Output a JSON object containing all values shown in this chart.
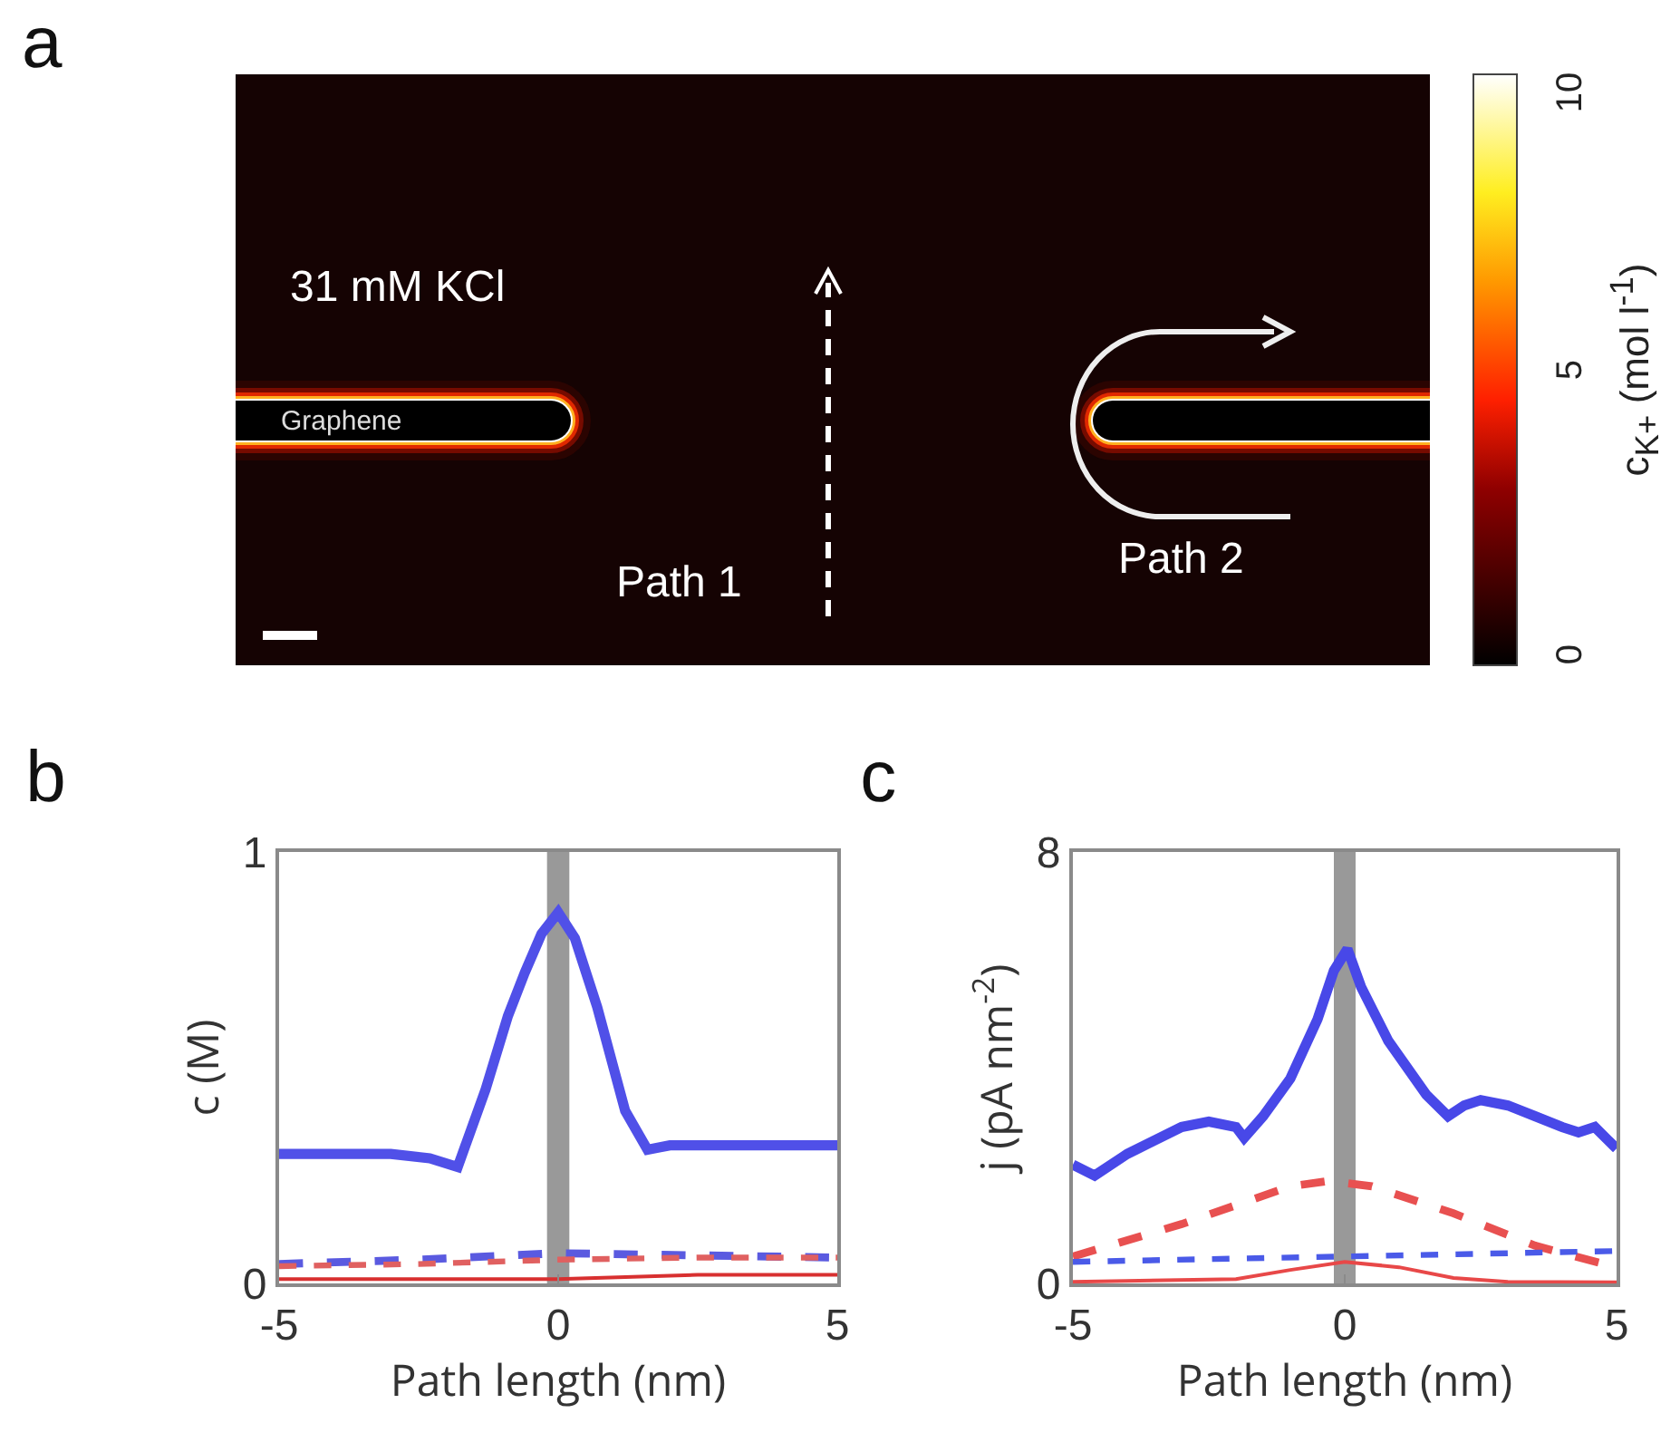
{
  "chart_data": [
    {
      "type": "other",
      "title": "a",
      "annotations": [
        "31 mM KCl",
        "Graphene",
        "Path 1",
        "Path 2",
        "c$_{K+}$ (mol l$^{-1}$)",
        "0",
        "5",
        "10"
      ]
    },
    {
      "type": "line",
      "title": "b",
      "xlabel": "Path length (nm)",
      "ylabel": "c (M)",
      "xlim": [
        -5,
        5
      ],
      "ylim": [
        0,
        1
      ],
      "xticks": [
        -5,
        0,
        5
      ],
      "yticks": [
        0,
        1
      ],
      "grid": false,
      "bands": [
        {
          "axis": "x",
          "from": -0.2,
          "to": 0.2,
          "color": "#999999"
        }
      ],
      "series": [
        {
          "color": "#5050e8",
          "line_style": "solid",
          "x": [
            -5,
            -4,
            -3,
            -2.3,
            -1.8,
            -1.3,
            -0.9,
            -0.6,
            -0.3,
            0,
            0.3,
            0.7,
            1.2,
            1.6,
            2,
            3,
            4,
            5
          ],
          "values": [
            0.3,
            0.3,
            0.3,
            0.29,
            0.27,
            0.45,
            0.62,
            0.72,
            0.81,
            0.86,
            0.8,
            0.64,
            0.4,
            0.31,
            0.32,
            0.32,
            0.32,
            0.32
          ]
        },
        {
          "color": "#5a5ae0",
          "line_style": "dashed",
          "x": [
            -5,
            -2.5,
            0,
            2.5,
            5
          ],
          "values": [
            0.045,
            0.055,
            0.07,
            0.065,
            0.06
          ]
        },
        {
          "color": "#e06060",
          "line_style": "dashed",
          "x": [
            -5,
            -2.5,
            0,
            2.5,
            5
          ],
          "values": [
            0.04,
            0.045,
            0.055,
            0.06,
            0.06
          ]
        },
        {
          "color": "#d83030",
          "line_style": "solid",
          "x": [
            -5,
            -2.5,
            0,
            2.5,
            5
          ],
          "values": [
            0.01,
            0.01,
            0.01,
            0.02,
            0.02
          ]
        }
      ]
    },
    {
      "type": "line",
      "title": "c",
      "xlabel": "Path length (nm)",
      "ylabel": "j (pA nm$^{-2}$)",
      "xlim": [
        -5,
        5
      ],
      "ylim": [
        0,
        8
      ],
      "xticks": [
        -5,
        0,
        5
      ],
      "yticks": [
        0,
        8
      ],
      "grid": false,
      "bands": [
        {
          "axis": "x",
          "from": -0.2,
          "to": 0.2,
          "color": "#999999"
        }
      ],
      "series": [
        {
          "color": "#4848e8",
          "line_style": "solid",
          "x": [
            -5,
            -4.6,
            -4,
            -3,
            -2.5,
            -2,
            -1.85,
            -1.5,
            -1,
            -0.5,
            -0.2,
            0.05,
            0.3,
            0.8,
            1.5,
            1.9,
            2.2,
            2.5,
            3,
            3.5,
            4,
            4.3,
            4.6,
            5
          ],
          "values": [
            2.2,
            2.0,
            2.4,
            2.9,
            3.0,
            2.9,
            2.7,
            3.1,
            3.8,
            4.9,
            5.8,
            6.2,
            5.5,
            4.5,
            3.5,
            3.1,
            3.3,
            3.4,
            3.3,
            3.1,
            2.9,
            2.8,
            2.9,
            2.5
          ]
        },
        {
          "color": "#e85050",
          "line_style": "dashed",
          "x": [
            -5,
            -3,
            -1,
            -0.3,
            0.5,
            2,
            3.5,
            5
          ],
          "values": [
            0.5,
            1.1,
            1.8,
            1.9,
            1.8,
            1.3,
            0.7,
            0.3
          ]
        },
        {
          "color": "#4a5ae8",
          "line_style": "dashed",
          "x": [
            -5,
            0,
            5
          ],
          "values": [
            0.4,
            0.5,
            0.6
          ]
        },
        {
          "color": "#e84848",
          "line_style": "solid",
          "x": [
            -5,
            -2,
            -1,
            0,
            1,
            2,
            3,
            5
          ],
          "values": [
            0.03,
            0.08,
            0.25,
            0.4,
            0.3,
            0.1,
            0.03,
            0.02
          ]
        }
      ]
    }
  ]
}
